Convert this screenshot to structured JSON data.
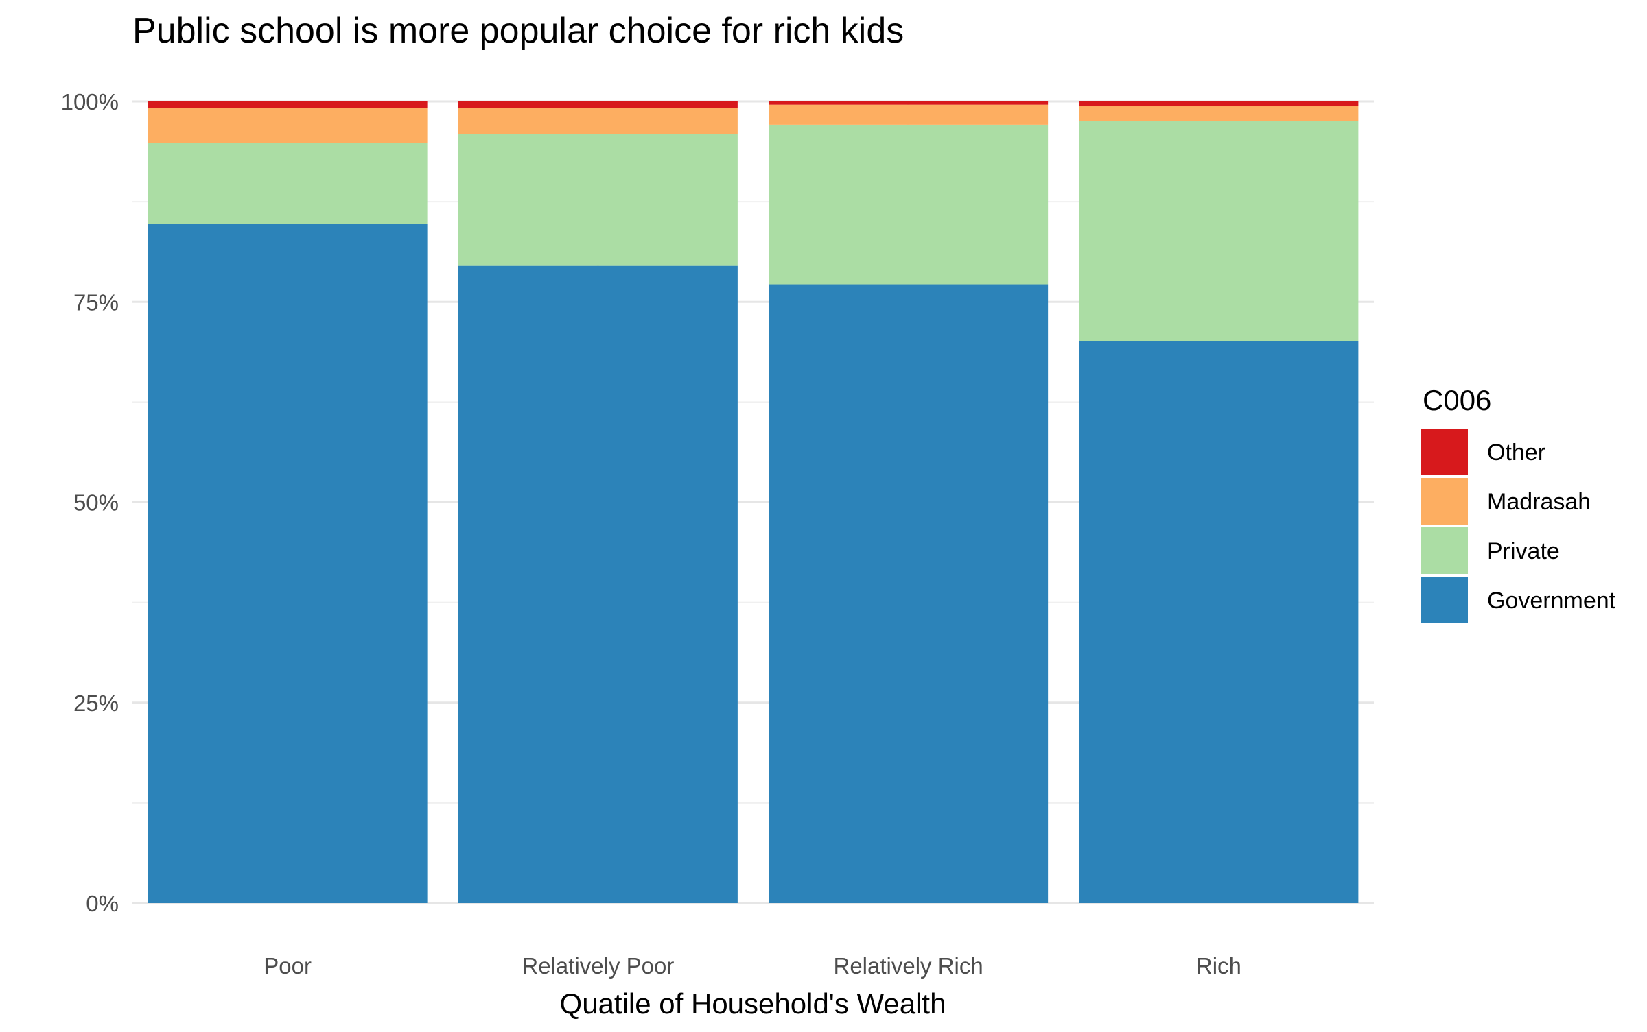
{
  "chart_data": {
    "type": "bar",
    "stacked": true,
    "normalized": true,
    "title": "Public school is more popular choice for rich kids",
    "xlabel": "Quatile of Household's Wealth",
    "ylabel": "",
    "categories": [
      "Poor",
      "Relatively Poor",
      "Relatively Rich",
      "Rich"
    ],
    "ylim": [
      0,
      100
    ],
    "yticks": [
      0,
      25,
      50,
      75,
      100
    ],
    "ytick_labels": [
      "0%",
      "25%",
      "50%",
      "75%",
      "100%"
    ],
    "grid": true,
    "legend": {
      "title": "C006",
      "placement": "right",
      "order": [
        "Other",
        "Madrasah",
        "Private",
        "Government"
      ]
    },
    "series": [
      {
        "name": "Government",
        "color": "#2c83b9",
        "values": [
          84.7,
          79.5,
          77.2,
          70.1
        ]
      },
      {
        "name": "Private",
        "color": "#abdda4",
        "values": [
          10.1,
          16.4,
          19.9,
          27.5
        ]
      },
      {
        "name": "Madrasah",
        "color": "#fdae61",
        "values": [
          4.4,
          3.3,
          2.5,
          1.8
        ]
      },
      {
        "name": "Other",
        "color": "#d7191c",
        "values": [
          0.8,
          0.8,
          0.4,
          0.6
        ]
      }
    ]
  }
}
